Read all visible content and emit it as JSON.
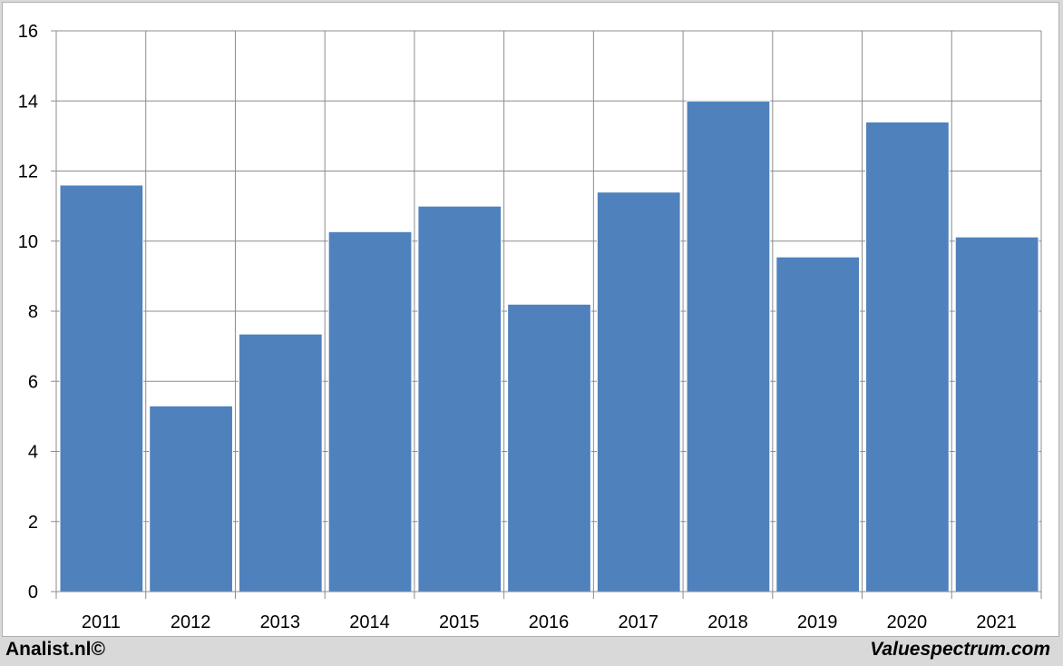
{
  "chart_data": {
    "type": "bar",
    "categories": [
      "2011",
      "2012",
      "2013",
      "2014",
      "2015",
      "2016",
      "2017",
      "2018",
      "2019",
      "2020",
      "2021"
    ],
    "values": [
      11.6,
      5.3,
      7.35,
      10.27,
      11.0,
      8.2,
      11.4,
      14.0,
      9.55,
      13.4,
      10.12
    ],
    "title": "",
    "xlabel": "",
    "ylabel": "",
    "ylim": [
      0,
      16
    ],
    "yticks": [
      "0",
      "2",
      "4",
      "6",
      "8",
      "10",
      "12",
      "14",
      "16"
    ],
    "grid": true,
    "bar_color": "#4f81bd"
  },
  "footer": {
    "left": "Analist.nl©",
    "right": "Valuespectrum.com"
  }
}
